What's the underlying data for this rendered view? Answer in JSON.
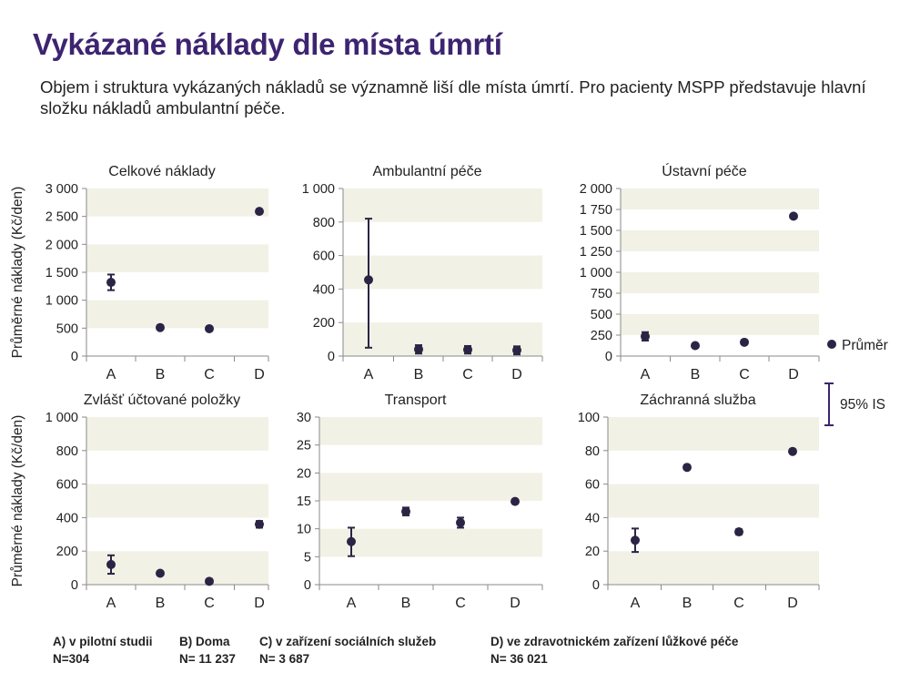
{
  "title": "Vykázané náklady dle místa úmrtí",
  "subtitle": "Objem i struktura vykázaných nákladů se významně liší dle místa úmrtí. Pro pacienty MSPP představuje hlavní složku nákladů ambulantní péče.",
  "y_axis_label": "Průměrné náklady (Kč/den)",
  "legend": {
    "mean": "Průměr",
    "ci": "95% IS"
  },
  "colors": {
    "marker": "#2b2444",
    "ci_legend": "#3d2470",
    "band": "#f1f1e6",
    "title": "#3d2470"
  },
  "footer": [
    {
      "label": "A) v pilotní studii",
      "n": "N=304"
    },
    {
      "label": "B) Doma",
      "n": "N= 11 237"
    },
    {
      "label": "C) v zařízení sociálních služeb",
      "n": "N= 3 687"
    },
    {
      "label": "D) ve zdravotnickém zařízení lůžkové péče",
      "n": "N= 36 021"
    }
  ],
  "chart_data": [
    {
      "type": "scatter",
      "title": "Celkové náklady",
      "categories": [
        "A",
        "B",
        "C",
        "D"
      ],
      "ylim": [
        0,
        3000
      ],
      "yticks": [
        0,
        500,
        1000,
        1500,
        2000,
        2500,
        3000
      ],
      "ytick_labels": [
        "0",
        "500",
        "1 000",
        "1 500",
        "2 000",
        "2 500",
        "3 000"
      ],
      "mean": [
        1320,
        510,
        490,
        2590
      ],
      "ci_low": [
        1180,
        480,
        465,
        2560
      ],
      "ci_high": [
        1460,
        540,
        515,
        2620
      ]
    },
    {
      "type": "scatter",
      "title": "Ambulantní péče",
      "categories": [
        "A",
        "B",
        "C",
        "D"
      ],
      "ylim": [
        0,
        1000
      ],
      "yticks": [
        0,
        200,
        400,
        600,
        800,
        1000
      ],
      "ytick_labels": [
        "0",
        "200",
        "400",
        "600",
        "800",
        "1 000"
      ],
      "mean": [
        455,
        40,
        38,
        35
      ],
      "ci_low": [
        50,
        15,
        15,
        10
      ],
      "ci_high": [
        820,
        65,
        60,
        58
      ]
    },
    {
      "type": "scatter",
      "title": "Ústavní péče",
      "categories": [
        "A",
        "B",
        "C",
        "D"
      ],
      "ylim": [
        0,
        2000
      ],
      "yticks": [
        0,
        250,
        500,
        750,
        1000,
        1250,
        1500,
        1750,
        2000
      ],
      "ytick_labels": [
        "0",
        "250",
        "500",
        "750",
        "1 000",
        "1 250",
        "1 500",
        "1 750",
        "2 000"
      ],
      "mean": [
        235,
        125,
        165,
        1670
      ],
      "ci_low": [
        185,
        112,
        150,
        1650
      ],
      "ci_high": [
        285,
        138,
        180,
        1690
      ]
    },
    {
      "type": "scatter",
      "title": "Zvlášť účtované položky",
      "categories": [
        "A",
        "B",
        "C",
        "D"
      ],
      "ylim": [
        0,
        1000
      ],
      "yticks": [
        0,
        200,
        400,
        600,
        800,
        1000
      ],
      "ytick_labels": [
        "0",
        "200",
        "400",
        "600",
        "800",
        "1 000"
      ],
      "mean": [
        120,
        68,
        20,
        360
      ],
      "ci_low": [
        65,
        62,
        15,
        340
      ],
      "ci_high": [
        175,
        74,
        25,
        380
      ]
    },
    {
      "type": "scatter",
      "title": "Transport",
      "categories": [
        "A",
        "B",
        "C",
        "D"
      ],
      "ylim": [
        0,
        30
      ],
      "yticks": [
        0,
        5,
        10,
        15,
        20,
        25,
        30
      ],
      "ytick_labels": [
        "0",
        "5",
        "10",
        "15",
        "20",
        "25",
        "30"
      ],
      "mean": [
        7.7,
        13.1,
        11.1,
        14.9
      ],
      "ci_low": [
        5.1,
        12.4,
        10.2,
        14.7
      ],
      "ci_high": [
        10.2,
        13.8,
        12.0,
        15.1
      ]
    },
    {
      "type": "scatter",
      "title": "Záchranná služba",
      "categories": [
        "A",
        "B",
        "C",
        "D"
      ],
      "ylim": [
        0,
        100
      ],
      "yticks": [
        0,
        20,
        40,
        60,
        80,
        100
      ],
      "ytick_labels": [
        "0",
        "20",
        "40",
        "60",
        "80",
        "100"
      ],
      "mean": [
        26.5,
        70,
        31.5,
        79.5
      ],
      "ci_low": [
        19.5,
        69.5,
        30,
        79
      ],
      "ci_high": [
        33.5,
        70.5,
        33,
        80
      ]
    }
  ]
}
